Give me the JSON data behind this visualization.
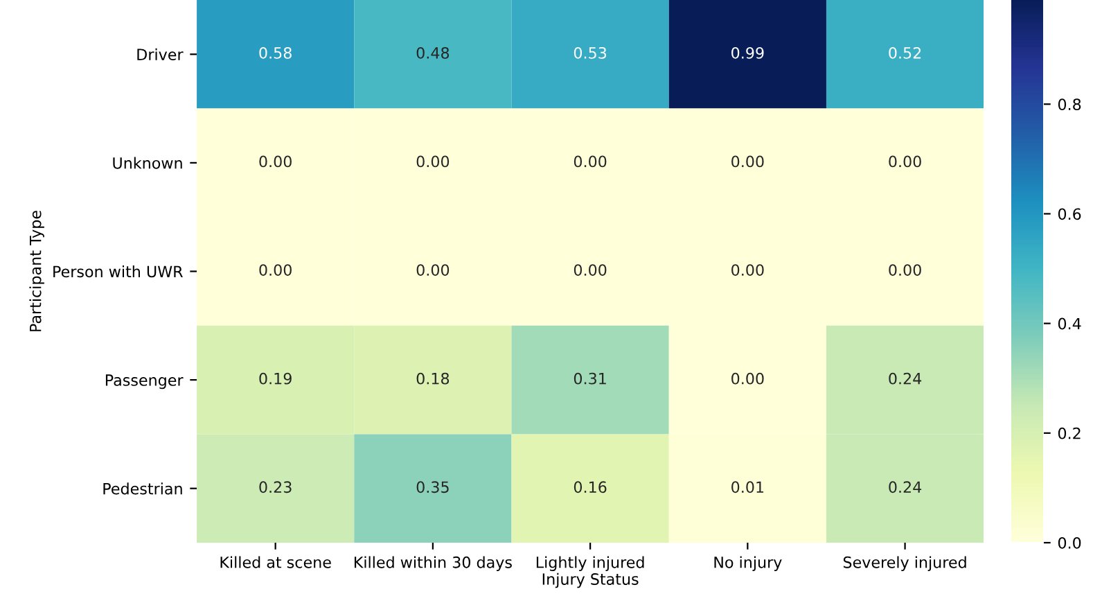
{
  "chart_data": {
    "type": "heatmap",
    "xlabel": "Injury Status",
    "ylabel": "Participant Type",
    "categories": [
      "Killed at scene",
      "Killed within 30 days",
      "Lightly injured",
      "No injury",
      "Severely injured"
    ],
    "y_categories": [
      "Driver",
      "Unknown",
      "Person with UWR",
      "Passenger",
      "Pedestrian"
    ],
    "cells": [
      [
        0.58,
        0.48,
        0.53,
        0.99,
        0.52
      ],
      [
        0,
        0,
        0,
        0,
        0
      ],
      [
        0,
        0,
        0,
        0,
        0
      ],
      [
        0.19,
        0.18,
        0.31,
        0,
        0.24
      ],
      [
        0.23,
        0.35,
        0.16,
        0.01,
        0.24
      ]
    ],
    "cell_labels": [
      [
        "0.58",
        "0.48",
        "0.53",
        "0.99",
        "0.52"
      ],
      [
        "0.00",
        "0.00",
        "0.00",
        "0.00",
        "0.00"
      ],
      [
        "0.00",
        "0.00",
        "0.00",
        "0.00",
        "0.00"
      ],
      [
        "0.19",
        "0.18",
        "0.31",
        "0.00",
        "0.24"
      ],
      [
        "0.23",
        "0.35",
        "0.16",
        "0.01",
        "0.24"
      ]
    ],
    "clim": [
      0,
      0.99
    ],
    "cticks": [
      {
        "value": 0,
        "label": "0.0"
      },
      {
        "value": 0.2,
        "label": "0.2"
      },
      {
        "value": 0.4,
        "label": "0.4"
      },
      {
        "value": 0.6,
        "label": "0.6"
      },
      {
        "value": 0.8,
        "label": "0.8"
      }
    ]
  }
}
